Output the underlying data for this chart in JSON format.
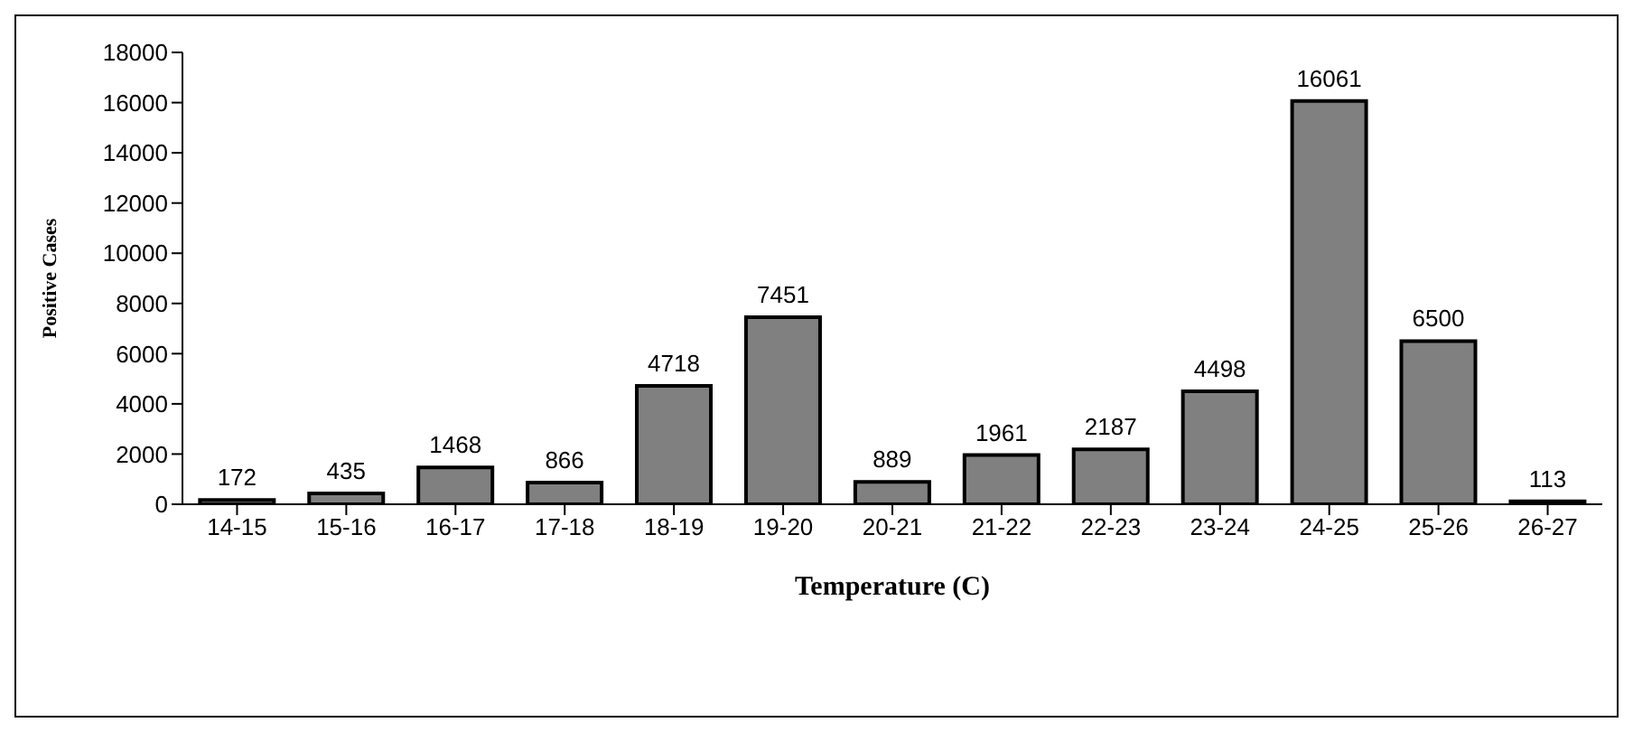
{
  "chart_data": {
    "type": "bar",
    "xlabel": "Temperature (C)",
    "ylabel": "Positive Cases",
    "categories": [
      "14-15",
      "15-16",
      "16-17",
      "17-18",
      "18-19",
      "19-20",
      "20-21",
      "21-22",
      "22-23",
      "23-24",
      "24-25",
      "25-26",
      "26-27"
    ],
    "values": [
      172,
      435,
      1468,
      866,
      4718,
      7451,
      889,
      1961,
      2187,
      4498,
      16061,
      6500,
      113
    ],
    "color": "#808080",
    "ylim": [
      0,
      18000
    ],
    "yticks": [
      0,
      2000,
      4000,
      6000,
      8000,
      10000,
      12000,
      14000,
      16000,
      18000
    ],
    "data_labels": true,
    "grid": false,
    "legend": false
  }
}
